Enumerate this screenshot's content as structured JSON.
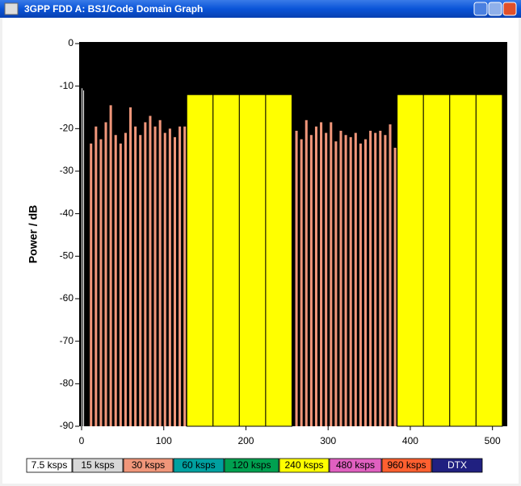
{
  "window_title": "3GPP FDD A: BS1/Code Domain Graph",
  "chart_data": {
    "type": "bar",
    "ylabel": "Power / dB",
    "xlim": [
      0,
      518
    ],
    "xticks": [
      0,
      100,
      200,
      300,
      400,
      500
    ],
    "ylim": [
      -90,
      0
    ],
    "yticks": [
      0,
      -10,
      -20,
      -30,
      -40,
      -50,
      -60,
      -70,
      -80,
      -90
    ],
    "background": "#000000",
    "series": [
      {
        "name": "7.5 ksps",
        "color": "#ffffff",
        "bar_width": 1,
        "x": [
          0,
          2
        ],
        "values": [
          -10.5,
          -11
        ]
      },
      {
        "name": "15 ksps",
        "color": "#d8d8d8",
        "bar_width": 2,
        "x": [],
        "values": []
      },
      {
        "name": "30 ksps",
        "color": "#f0967a",
        "bar_width": 3,
        "x": [
          10,
          16,
          22,
          28,
          34,
          40,
          46,
          52,
          58,
          64,
          70,
          76,
          82,
          88,
          94,
          100,
          106,
          112,
          118,
          124,
          260,
          266,
          272,
          278,
          284,
          290,
          296,
          302,
          308,
          314,
          320,
          326,
          332,
          338,
          344,
          350,
          356,
          362,
          368,
          374,
          380
        ],
        "values": [
          -23.5,
          -19.5,
          -22.5,
          -18.5,
          -14.5,
          -21.5,
          -23.5,
          -21,
          -15,
          -19.5,
          -21.5,
          -18.5,
          -17,
          -19.5,
          -18,
          -21,
          -20,
          -22,
          -19.5,
          -19.5,
          -20.5,
          -22.5,
          -18,
          -21.5,
          -19.5,
          -18.5,
          -21,
          -18.5,
          -23,
          -20.5,
          -21.5,
          -22,
          -21,
          -23.5,
          -22.5,
          -20.5,
          -21,
          -20.5,
          -21.5,
          -19,
          -24.5
        ]
      },
      {
        "name": "60 ksps",
        "color": "#00a0a0",
        "bar_width": 8,
        "x": [],
        "values": []
      },
      {
        "name": "120 ksps",
        "color": "#00a050",
        "bar_width": 16,
        "x": [],
        "values": []
      },
      {
        "name": "240 ksps",
        "color": "#ffff00",
        "bar_width": 32,
        "x": [
          128,
          160,
          192,
          224,
          384,
          416,
          448,
          480
        ],
        "values": [
          -12,
          -12,
          -12,
          -12,
          -12,
          -12,
          -12,
          -12
        ]
      },
      {
        "name": "480 ksps",
        "color": "#e060c0",
        "bar_width": 64,
        "x": [],
        "values": []
      },
      {
        "name": "960 ksps",
        "color": "#ff6030",
        "bar_width": 128,
        "x": [],
        "values": []
      },
      {
        "name": "DTX",
        "color": "#202080",
        "bar_width": 1,
        "x": [],
        "values": []
      }
    ]
  }
}
